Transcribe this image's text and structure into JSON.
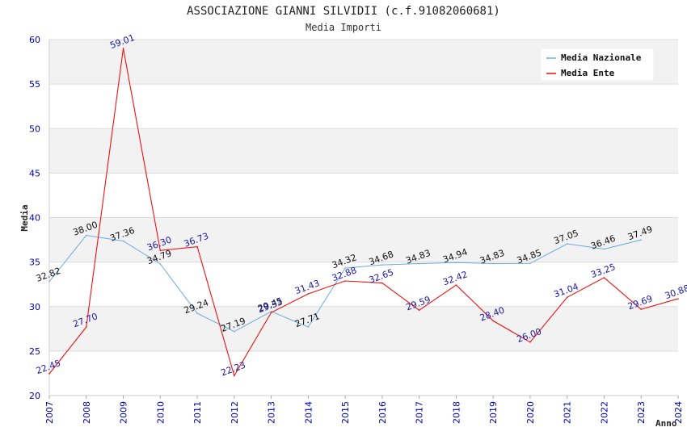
{
  "chart_data": {
    "type": "line",
    "title": "ASSOCIAZIONE GIANNI SILVIDII (c.f.91082060681)",
    "subtitle": "Media Importi",
    "xlabel": "Anno",
    "ylabel": "Media",
    "ylim": [
      20,
      60
    ],
    "yticks": [
      20,
      25,
      30,
      35,
      40,
      45,
      50,
      55,
      60
    ],
    "categories": [
      "2007",
      "2008",
      "2009",
      "2010",
      "2011",
      "2012",
      "2013",
      "2014",
      "2015",
      "2016",
      "2017",
      "2018",
      "2019",
      "2020",
      "2021",
      "2022",
      "2023",
      "2024"
    ],
    "legend_position": "top-right",
    "series": [
      {
        "name": "Media Nazionale",
        "color": "#6aaae6",
        "labels": [
          "32.82",
          "38.00",
          "37.36",
          "34.79",
          "29.24",
          "27.19",
          "29.45",
          "27.71",
          "34.32",
          "34.68",
          "34.83",
          "34.94",
          "34.83",
          "34.85",
          "37.05",
          "36.46",
          "37.49",
          ""
        ],
        "values": [
          32.82,
          38.0,
          37.36,
          34.79,
          29.24,
          27.19,
          29.45,
          27.71,
          34.32,
          34.68,
          34.83,
          34.94,
          34.83,
          34.85,
          37.05,
          36.46,
          37.49,
          null
        ]
      },
      {
        "name": "Media Ente",
        "color": "#ee1111",
        "labels": [
          "22.45",
          "27.70",
          "59.01",
          "36.30",
          "36.73",
          "22.23",
          "29.33",
          "31.43",
          "32.88",
          "32.65",
          "29.59",
          "32.42",
          "28.40",
          "26.00",
          "31.04",
          "33.25",
          "29.69",
          "30.88"
        ],
        "values": [
          22.45,
          27.7,
          59.01,
          36.3,
          36.73,
          22.23,
          29.33,
          31.43,
          32.88,
          32.65,
          29.59,
          32.42,
          28.4,
          26.0,
          31.04,
          33.25,
          29.69,
          30.88
        ]
      }
    ],
    "grid": true
  }
}
